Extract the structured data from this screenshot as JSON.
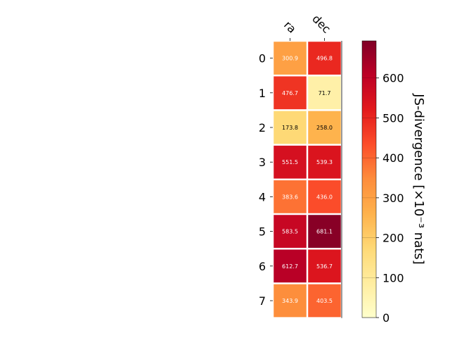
{
  "chart_data": {
    "type": "heatmap",
    "columns": [
      "ra",
      "dec"
    ],
    "rows": [
      "0",
      "1",
      "2",
      "3",
      "4",
      "5",
      "6",
      "7"
    ],
    "values": [
      [
        300.9,
        496.8
      ],
      [
        476.7,
        71.7
      ],
      [
        173.8,
        258.0
      ],
      [
        551.5,
        539.3
      ],
      [
        383.6,
        436.0
      ],
      [
        583.5,
        681.1
      ],
      [
        612.7,
        536.7
      ],
      [
        343.9,
        403.5
      ]
    ],
    "value_labels": [
      [
        "300.9",
        "496.8"
      ],
      [
        "476.7",
        "71.7"
      ],
      [
        "173.8",
        "258.0"
      ],
      [
        "551.5",
        "539.3"
      ],
      [
        "383.6",
        "436.0"
      ],
      [
        "583.5",
        "681.1"
      ],
      [
        "612.7",
        "536.7"
      ],
      [
        "343.9",
        "403.5"
      ]
    ],
    "colorbar": {
      "label": "JS-divergence [×10⁻³ nats]",
      "ticks": [
        0,
        100,
        200,
        300,
        400,
        500,
        600
      ],
      "range": [
        0,
        693
      ],
      "colormap": "YlOrRd"
    }
  }
}
